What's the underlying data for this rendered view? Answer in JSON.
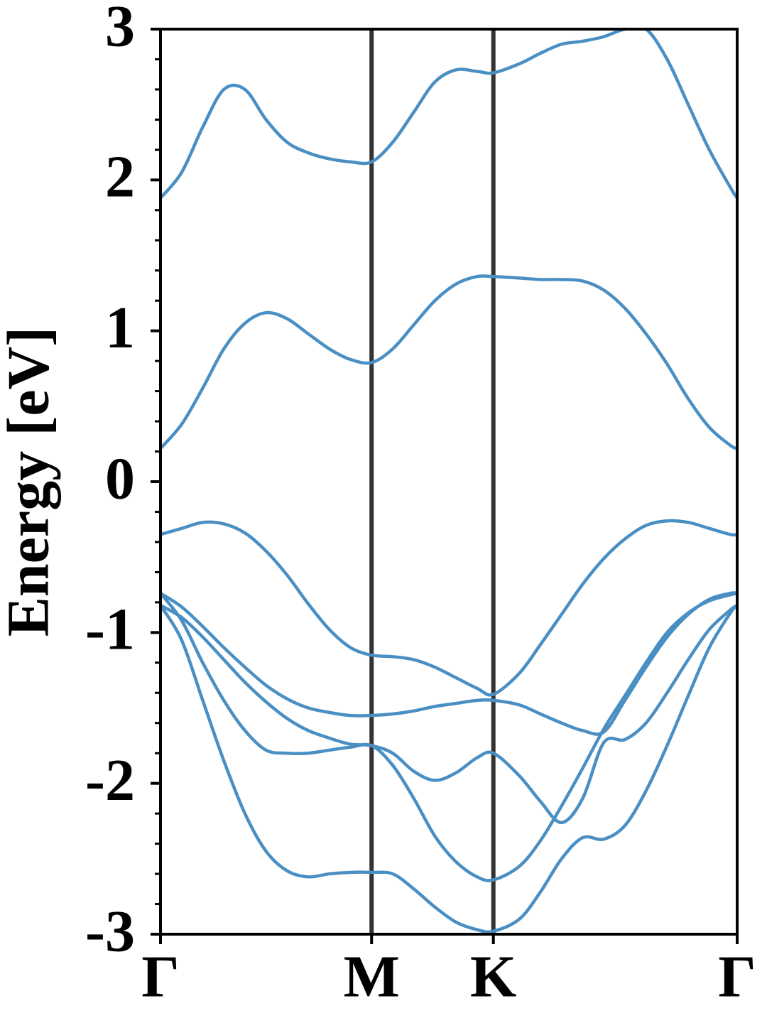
{
  "chart_data": {
    "type": "line",
    "ylabel": "Energy [eV]",
    "x": [
      0,
      0.1,
      0.2,
      0.3,
      0.4,
      0.5,
      0.6,
      0.7,
      0.8,
      0.9,
      1.0,
      1.1,
      1.2,
      1.3,
      1.4,
      1.5,
      1.577,
      1.7,
      1.8,
      1.9,
      2.0,
      2.1,
      2.2,
      2.3,
      2.4,
      2.5,
      2.6,
      2.7,
      2.732
    ],
    "xlim": [
      0,
      2.732
    ],
    "xticks": [
      {
        "value": 0,
        "label": "Γ"
      },
      {
        "value": 1,
        "label": "M"
      },
      {
        "value": 1.577,
        "label": "K"
      },
      {
        "value": 2.732,
        "label": "Γ"
      }
    ],
    "ylim": [
      -3,
      3
    ],
    "yticks": [
      -3,
      -2,
      -1,
      0,
      1,
      2,
      3
    ],
    "yminorticks": [
      -2.8,
      -2.6,
      -2.4,
      -2.2,
      -1.8,
      -1.6,
      -1.4,
      -1.2,
      -0.8,
      -0.6,
      -0.4,
      -0.2,
      0.2,
      0.4,
      0.6,
      0.8,
      1.2,
      1.4,
      1.6,
      1.8,
      2.2,
      2.4,
      2.6,
      2.8
    ],
    "kpoint_lines": true,
    "kpoint_line_color": "#333333",
    "color": "#4a8fc4",
    "series": [
      {
        "values": [
          1.88,
          2.05,
          2.35,
          2.6,
          2.6,
          2.4,
          2.25,
          2.18,
          2.14,
          2.12,
          2.12,
          2.25,
          2.45,
          2.65,
          2.73,
          2.72,
          2.71,
          2.77,
          2.84,
          2.9,
          2.92,
          2.95,
          3.0,
          3.0,
          2.8,
          2.5,
          2.2,
          1.95,
          1.88
        ]
      },
      {
        "values": [
          0.22,
          0.38,
          0.62,
          0.88,
          1.05,
          1.12,
          1.08,
          0.98,
          0.88,
          0.81,
          0.79,
          0.88,
          1.04,
          1.2,
          1.31,
          1.36,
          1.36,
          1.35,
          1.34,
          1.34,
          1.33,
          1.27,
          1.15,
          0.98,
          0.78,
          0.55,
          0.36,
          0.24,
          0.22
        ]
      },
      {
        "values": [
          -0.35,
          -0.31,
          -0.27,
          -0.28,
          -0.34,
          -0.46,
          -0.62,
          -0.81,
          -0.98,
          -1.1,
          -1.15,
          -1.16,
          -1.18,
          -1.23,
          -1.3,
          -1.37,
          -1.41,
          -1.27,
          -1.08,
          -0.88,
          -0.68,
          -0.51,
          -0.38,
          -0.29,
          -0.26,
          -0.27,
          -0.31,
          -0.35,
          -0.35
        ]
      },
      {
        "values": [
          -0.74,
          -0.83,
          -0.96,
          -1.1,
          -1.23,
          -1.35,
          -1.44,
          -1.5,
          -1.53,
          -1.55,
          -1.55,
          -1.54,
          -1.52,
          -1.49,
          -1.47,
          -1.45,
          -1.45,
          -1.48,
          -1.54,
          -1.6,
          -1.65,
          -1.66,
          -1.45,
          -1.23,
          -1.03,
          -0.88,
          -0.78,
          -0.74,
          -0.74
        ]
      },
      {
        "values": [
          -0.82,
          -0.9,
          -1.03,
          -1.18,
          -1.33,
          -1.46,
          -1.57,
          -1.65,
          -1.7,
          -1.74,
          -1.75,
          -1.8,
          -1.92,
          -1.98,
          -1.93,
          -1.83,
          -1.8,
          -1.95,
          -2.12,
          -2.26,
          -2.1,
          -1.73,
          -1.71,
          -1.6,
          -1.4,
          -1.18,
          -0.98,
          -0.85,
          -0.82
        ]
      },
      {
        "values": [
          -0.74,
          -0.92,
          -1.2,
          -1.45,
          -1.65,
          -1.78,
          -1.8,
          -1.8,
          -1.78,
          -1.76,
          -1.75,
          -1.88,
          -2.1,
          -2.35,
          -2.52,
          -2.62,
          -2.64,
          -2.55,
          -2.38,
          -2.15,
          -1.9,
          -1.64,
          -1.42,
          -1.2,
          -1.0,
          -0.87,
          -0.79,
          -0.75,
          -0.74
        ]
      },
      {
        "values": [
          -0.82,
          -1.05,
          -1.45,
          -1.85,
          -2.2,
          -2.45,
          -2.58,
          -2.62,
          -2.6,
          -2.59,
          -2.59,
          -2.6,
          -2.7,
          -2.82,
          -2.92,
          -2.97,
          -2.98,
          -2.9,
          -2.72,
          -2.5,
          -2.36,
          -2.37,
          -2.28,
          -2.05,
          -1.75,
          -1.42,
          -1.1,
          -0.87,
          -0.82
        ]
      }
    ]
  }
}
